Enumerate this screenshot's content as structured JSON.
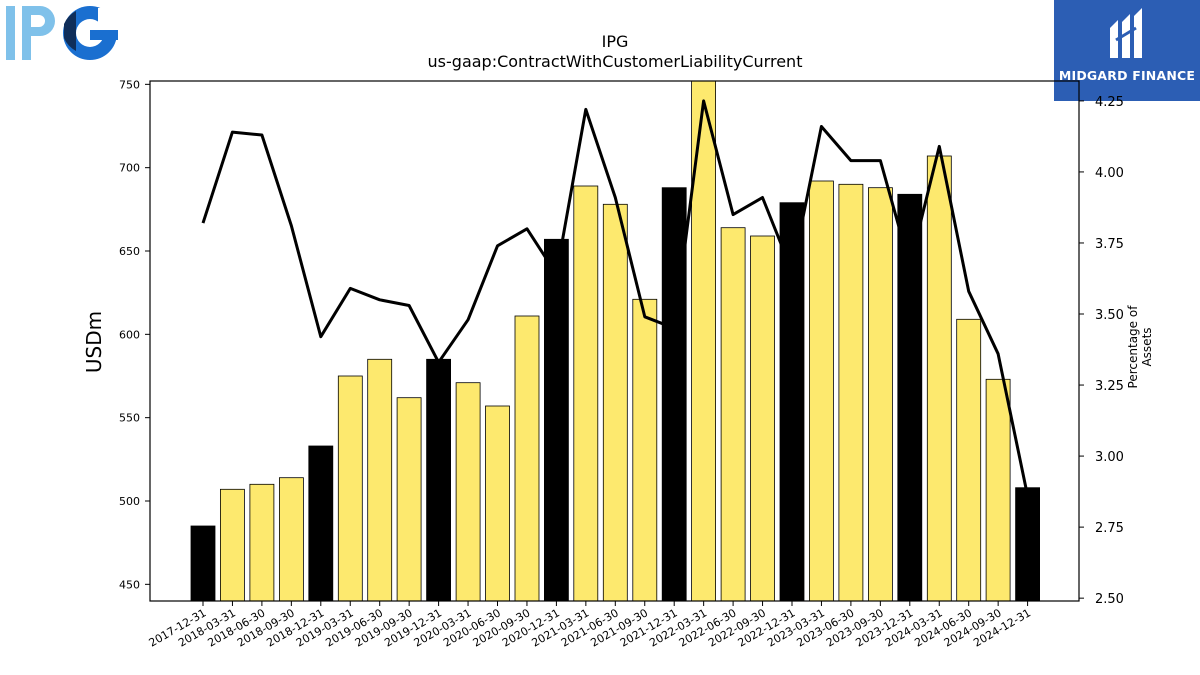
{
  "header": {
    "left_logo_text": "IPG",
    "right_logo_text": "MIDGARD FINANCE"
  },
  "chart_data": {
    "type": "bar",
    "title": "IPG",
    "subtitle": "us-gaap:ContractWithCustomerLiabilityCurrent",
    "xlabel": "",
    "ylabel": "USDm",
    "y2label": "Percentage of Assets",
    "ylim": [
      440,
      752
    ],
    "y2lim": [
      2.49,
      4.32
    ],
    "yticks": [
      450,
      500,
      550,
      600,
      650,
      700,
      750
    ],
    "y2ticks": [
      "2.50",
      "2.75",
      "3.00",
      "3.25",
      "3.50",
      "3.75",
      "4.00",
      "4.25"
    ],
    "categories": [
      "2017-12-31",
      "2018-03-31",
      "2018-06-30",
      "2018-09-30",
      "2018-12-31",
      "2019-03-31",
      "2019-06-30",
      "2019-09-30",
      "2019-12-31",
      "2020-03-31",
      "2020-06-30",
      "2020-09-30",
      "2020-12-31",
      "2021-03-31",
      "2021-06-30",
      "2021-09-30",
      "2021-12-31",
      "2022-03-31",
      "2022-06-30",
      "2022-09-30",
      "2022-12-31",
      "2023-03-31",
      "2023-06-30",
      "2023-09-30",
      "2023-12-31",
      "2024-03-31",
      "2024-06-30",
      "2024-09-30",
      "2024-12-31"
    ],
    "series": [
      {
        "values": [
          485,
          507,
          510,
          514,
          533,
          575,
          585,
          562,
          585,
          571,
          557,
          611,
          657,
          689,
          678,
          621,
          688,
          758,
          664,
          659,
          679,
          692,
          690,
          688,
          684,
          707,
          609,
          573,
          508
        ],
        "fiscal_year_end": [
          true,
          false,
          false,
          false,
          true,
          false,
          false,
          false,
          true,
          false,
          false,
          false,
          true,
          false,
          false,
          false,
          true,
          false,
          false,
          false,
          true,
          false,
          false,
          false,
          true,
          false,
          false,
          false,
          true
        ],
        "colors": {
          "year_end": "#000000",
          "quarter": "#fde96e"
        }
      },
      {
        "axis": "right",
        "type": "line",
        "color": "#000000",
        "values": [
          3.82,
          4.14,
          4.13,
          3.81,
          3.42,
          3.59,
          3.55,
          3.53,
          3.33,
          3.48,
          3.74,
          3.8,
          3.64,
          4.22,
          3.91,
          3.49,
          3.45,
          4.25,
          3.85,
          3.91,
          3.65,
          4.16,
          4.04,
          4.04,
          3.67,
          4.09,
          3.58,
          3.36,
          2.86
        ]
      }
    ]
  }
}
